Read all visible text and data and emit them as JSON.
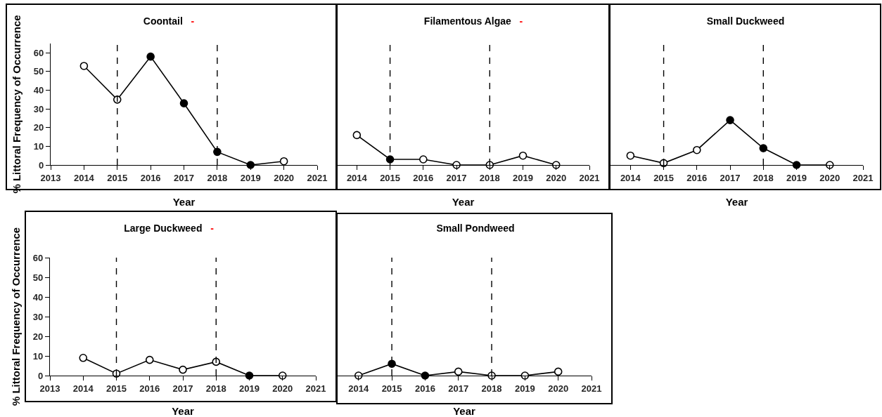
{
  "chart_data": [
    {
      "type": "line",
      "title": "Coontail",
      "annotations": [
        "-"
      ],
      "xlabel": "Year",
      "ylabel": "% Littoral Frequency of Occurrence",
      "x": [
        2014,
        2015,
        2016,
        2017,
        2018,
        2019,
        2020
      ],
      "series": [
        {
          "color": "#000000",
          "colors": [
            "#ffffff",
            "#ffffff",
            "#000000",
            "#000000",
            "#000000",
            "#000000",
            "#ffffff"
          ],
          "values": [
            53,
            35,
            58,
            33,
            7,
            0,
            2
          ]
        }
      ],
      "xlim": [
        2013,
        2021
      ],
      "xticks": [
        2013,
        2014,
        2015,
        2016,
        2017,
        2018,
        2019,
        2020,
        2021
      ],
      "ylim": [
        0,
        65
      ],
      "yticks": [
        0,
        10,
        20,
        30,
        40,
        50,
        60
      ],
      "ref_lines": [
        {
          "axis": "x",
          "value": 2015,
          "line_style": "dashed"
        },
        {
          "axis": "x",
          "value": 2018,
          "line_style": "dashed"
        }
      ],
      "marker": "circle"
    },
    {
      "type": "line",
      "title": "Filamentous Algae",
      "annotations": [
        "-"
      ],
      "xlabel": "Year",
      "x": [
        2014,
        2015,
        2016,
        2017,
        2018,
        2019,
        2020
      ],
      "series": [
        {
          "color": "#000000",
          "colors": [
            "#ffffff",
            "#000000",
            "#ffffff",
            "#ffffff",
            "#ffffff",
            "#ffffff",
            "#ffffff"
          ],
          "values": [
            16,
            3,
            3,
            0,
            0,
            5,
            0
          ]
        }
      ],
      "xlim": [
        2013.4,
        2021
      ],
      "xticks": [
        2014,
        2015,
        2016,
        2017,
        2018,
        2019,
        2020,
        2021
      ],
      "ylim": [
        0,
        65
      ],
      "yticks": [
        0,
        10,
        20,
        30,
        40,
        50,
        60
      ],
      "ref_lines": [
        {
          "axis": "x",
          "value": 2015,
          "line_style": "dashed"
        },
        {
          "axis": "x",
          "value": 2018,
          "line_style": "dashed"
        }
      ],
      "marker": "circle",
      "tick_labels": "x"
    },
    {
      "type": "line",
      "title": "Small Duckweed",
      "xlabel": "Year",
      "x": [
        2014,
        2015,
        2016,
        2017,
        2018,
        2019,
        2020
      ],
      "series": [
        {
          "color": "#000000",
          "colors": [
            "#ffffff",
            "#ffffff",
            "#ffffff",
            "#000000",
            "#000000",
            "#000000",
            "#ffffff"
          ],
          "values": [
            5,
            1,
            8,
            24,
            9,
            0,
            0
          ]
        }
      ],
      "xlim": [
        2013.4,
        2021
      ],
      "xticks": [
        2014,
        2015,
        2016,
        2017,
        2018,
        2019,
        2020,
        2021
      ],
      "ylim": [
        0,
        65
      ],
      "yticks": [
        0,
        10,
        20,
        30,
        40,
        50,
        60
      ],
      "ref_lines": [
        {
          "axis": "x",
          "value": 2015,
          "line_style": "dashed"
        },
        {
          "axis": "x",
          "value": 2018,
          "line_style": "dashed"
        }
      ],
      "marker": "circle",
      "tick_labels": "x"
    },
    {
      "type": "line",
      "title": "Large Duckweed",
      "annotations": [
        "-"
      ],
      "xlabel": "Year",
      "ylabel": "% Littoral Frequency of Occurrence",
      "x": [
        2014,
        2015,
        2016,
        2017,
        2018,
        2019,
        2020
      ],
      "series": [
        {
          "color": "#000000",
          "colors": [
            "#ffffff",
            "#ffffff",
            "#ffffff",
            "#ffffff",
            "#ffffff",
            "#000000",
            "#ffffff"
          ],
          "values": [
            9,
            1,
            8,
            3,
            7,
            0,
            0
          ]
        }
      ],
      "xlim": [
        2013,
        2021
      ],
      "xticks": [
        2013,
        2014,
        2015,
        2016,
        2017,
        2018,
        2019,
        2020,
        2021
      ],
      "ylim": [
        0,
        60
      ],
      "yticks": [
        0,
        10,
        20,
        30,
        40,
        50,
        60
      ],
      "ref_lines": [
        {
          "axis": "x",
          "value": 2015,
          "line_style": "dashed"
        },
        {
          "axis": "x",
          "value": 2018,
          "line_style": "dashed"
        }
      ],
      "marker": "circle"
    },
    {
      "type": "line",
      "title": "Small Pondweed",
      "xlabel": "Year",
      "x": [
        2014,
        2015,
        2016,
        2017,
        2018,
        2019,
        2020
      ],
      "series": [
        {
          "color": "#000000",
          "colors": [
            "#ffffff",
            "#000000",
            "#000000",
            "#ffffff",
            "#ffffff",
            "#ffffff",
            "#ffffff"
          ],
          "values": [
            0,
            6,
            0,
            2,
            0,
            0,
            2
          ]
        }
      ],
      "xlim": [
        2013.35,
        2021
      ],
      "xticks": [
        2014,
        2015,
        2016,
        2017,
        2018,
        2019,
        2020,
        2021
      ],
      "ylim": [
        0,
        60
      ],
      "yticks": [
        0,
        10,
        20,
        30,
        40,
        50,
        60
      ],
      "ref_lines": [
        {
          "axis": "x",
          "value": 2015,
          "line_style": "dashed"
        },
        {
          "axis": "x",
          "value": 2018,
          "line_style": "dashed"
        }
      ],
      "marker": "circle",
      "tick_labels": "x"
    }
  ]
}
